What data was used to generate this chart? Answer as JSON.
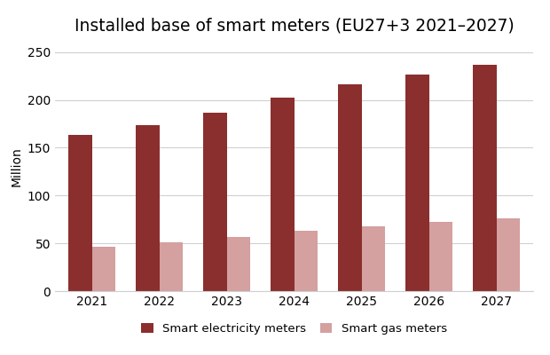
{
  "title": "Installed base of smart meters (EU27+3 2021–2027)",
  "years": [
    2021,
    2022,
    2023,
    2024,
    2025,
    2026,
    2027
  ],
  "electricity_values": [
    163,
    174,
    187,
    202,
    216,
    227,
    237
  ],
  "gas_values": [
    46,
    51,
    57,
    63,
    68,
    72,
    76
  ],
  "electricity_color": "#8B2E2E",
  "gas_color": "#D4A0A0",
  "ylabel": "Million",
  "ylim": [
    0,
    260
  ],
  "yticks": [
    0,
    50,
    100,
    150,
    200,
    250
  ],
  "legend_electricity": "Smart electricity meters",
  "legend_gas": "Smart gas meters",
  "background_color": "#ffffff",
  "bar_width": 0.35,
  "title_fontsize": 13.5,
  "tick_fontsize": 10,
  "ylabel_fontsize": 10,
  "legend_fontsize": 9.5
}
